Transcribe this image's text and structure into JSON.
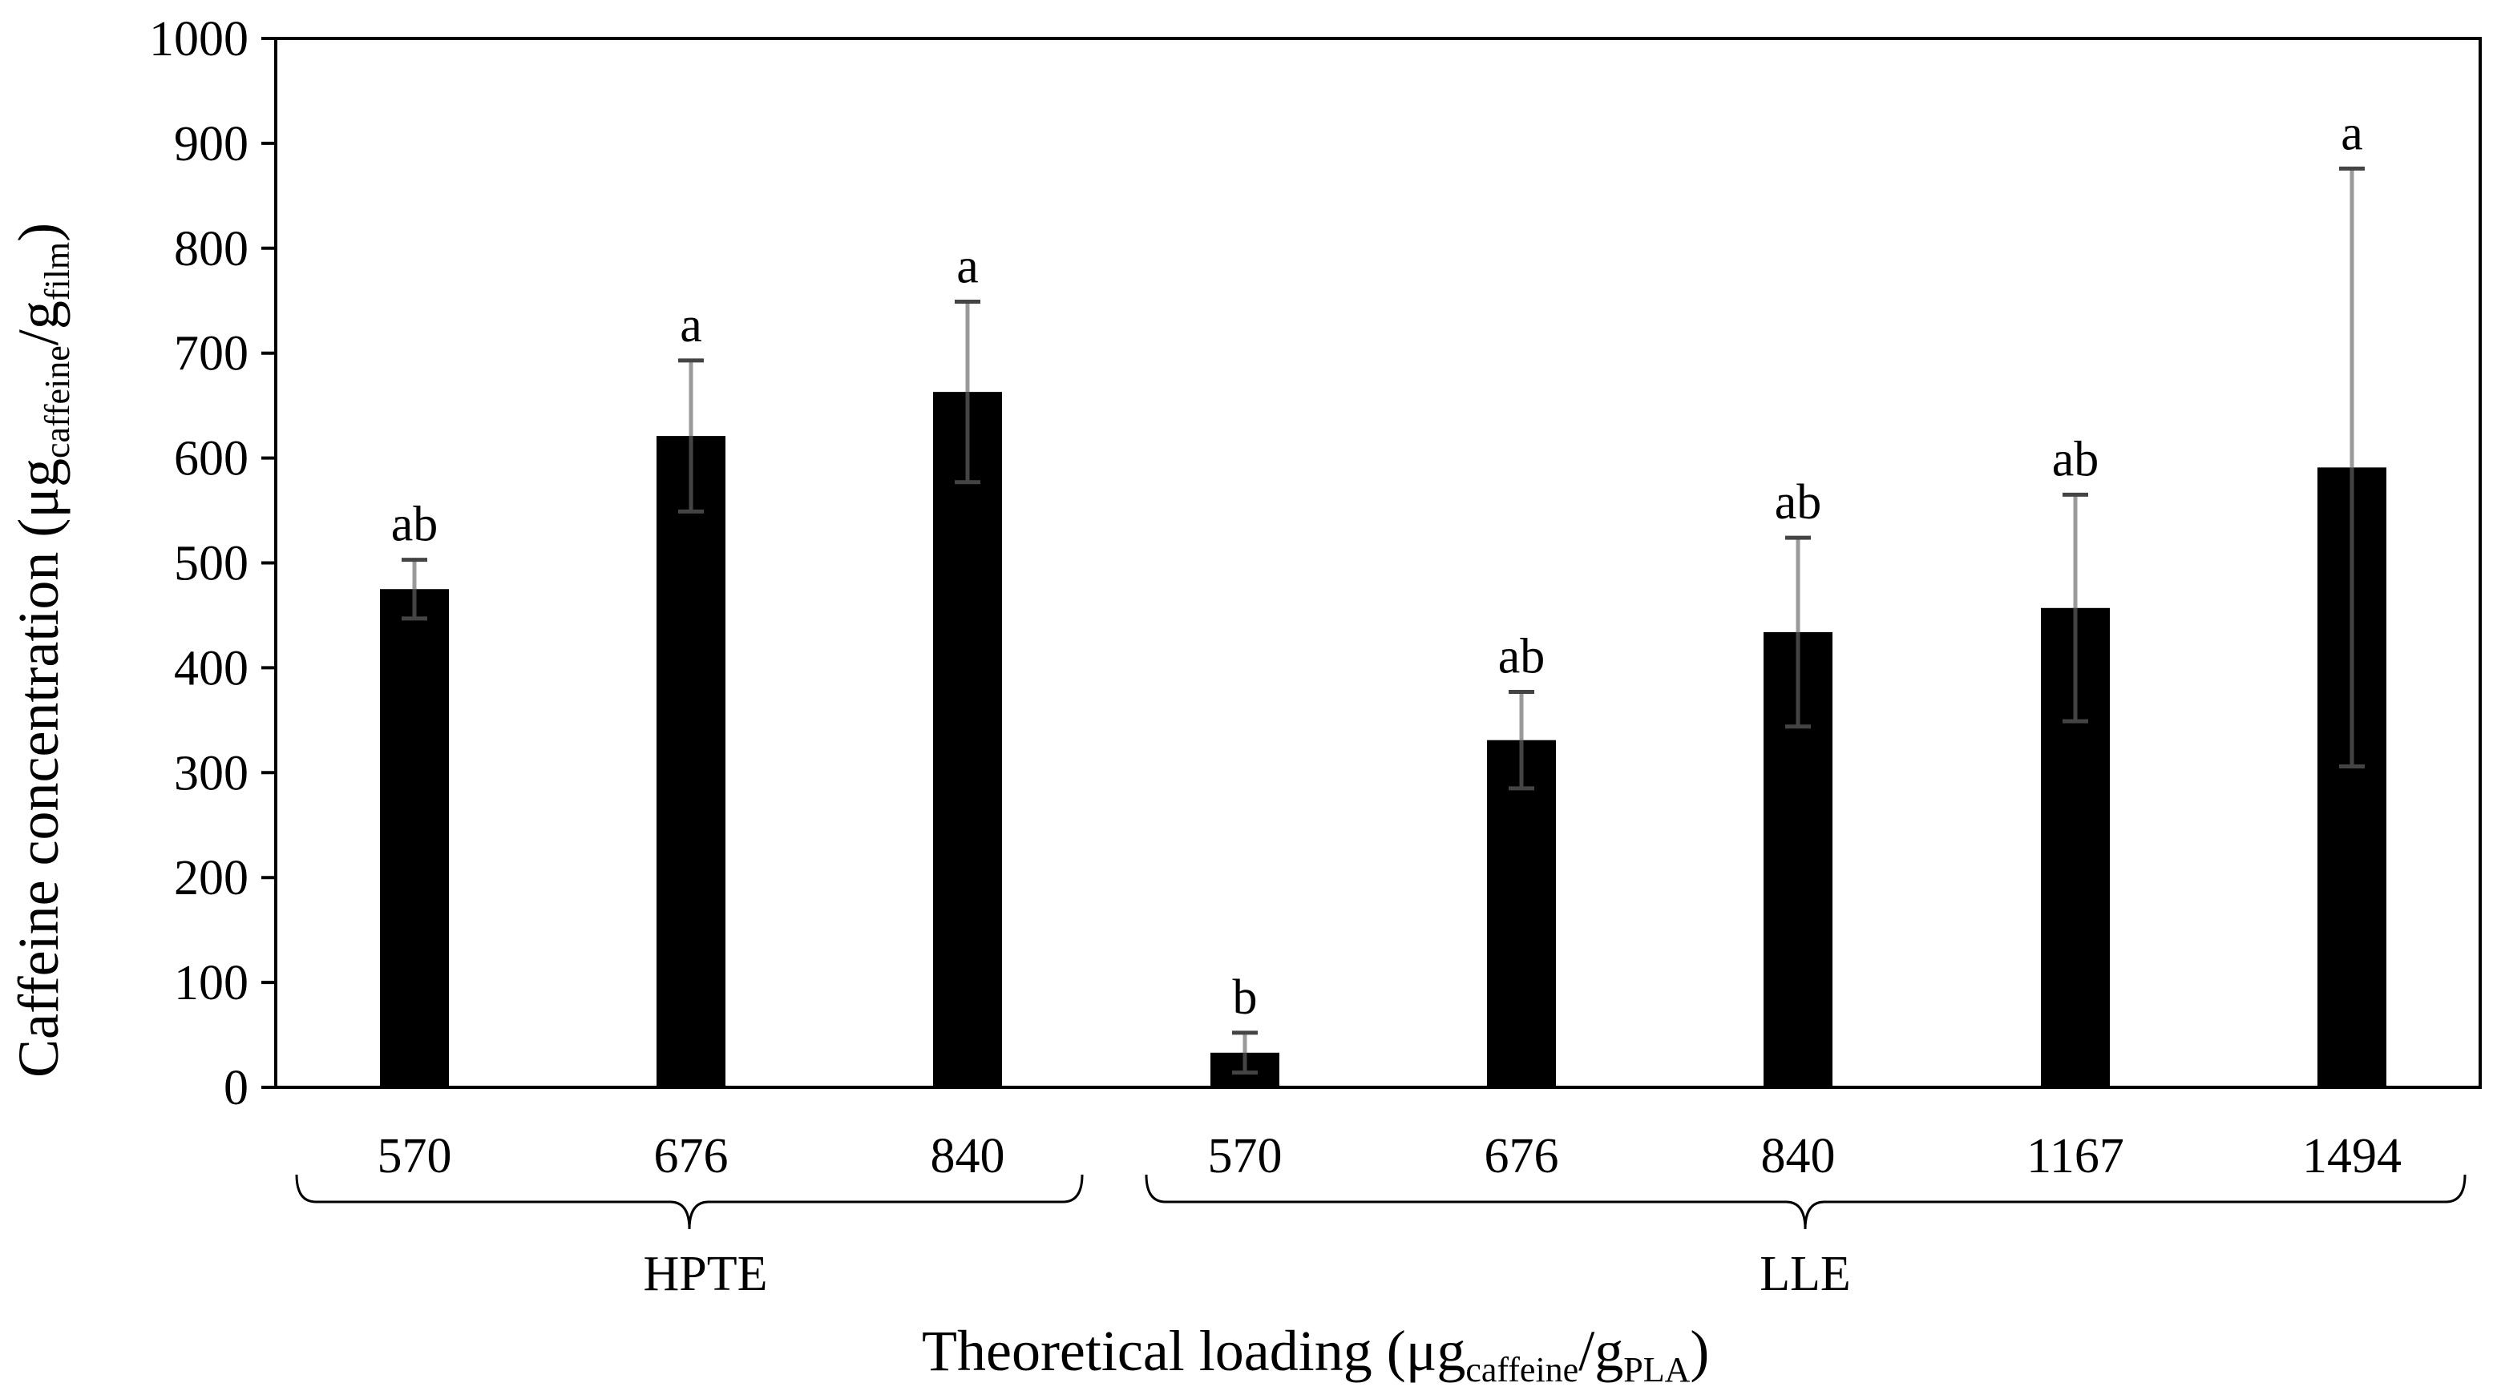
{
  "chart_data": {
    "type": "bar",
    "xlabel": {
      "main": "Theoretical loading (μg",
      "sub1": "caffeine",
      "mid": "/g",
      "sub2": "PLA",
      "end": ")"
    },
    "ylabel": {
      "main": "Caffeine concentration (μg",
      "sub1": "caffeine",
      "mid": "/g",
      "sub2": "film",
      "end": ")"
    },
    "ylim": [
      0,
      1000
    ],
    "yticks": [
      "0",
      "100",
      "200",
      "300",
      "400",
      "500",
      "600",
      "700",
      "800",
      "900",
      "1000"
    ],
    "categories": [
      "570",
      "676",
      "840",
      "570",
      "676",
      "840",
      "1167",
      "1494"
    ],
    "groups": [
      {
        "name": "HPTE",
        "category_indices": [
          0,
          1,
          2
        ]
      },
      {
        "name": "LLE",
        "category_indices": [
          3,
          4,
          5,
          6,
          7
        ]
      }
    ],
    "values": [
      475,
      621,
      663,
      33,
      331,
      434,
      457,
      591
    ],
    "errors": [
      28,
      72,
      86,
      19,
      46,
      90,
      108,
      285
    ],
    "significance": [
      "ab",
      "a",
      "a",
      "b",
      "ab",
      "ab",
      "ab",
      "a"
    ],
    "colors": {
      "bar": "#000000",
      "error_dark": "#444444",
      "error_light": "#9a9a9a",
      "axis": "#000000"
    },
    "grid": false,
    "legend": "none"
  }
}
